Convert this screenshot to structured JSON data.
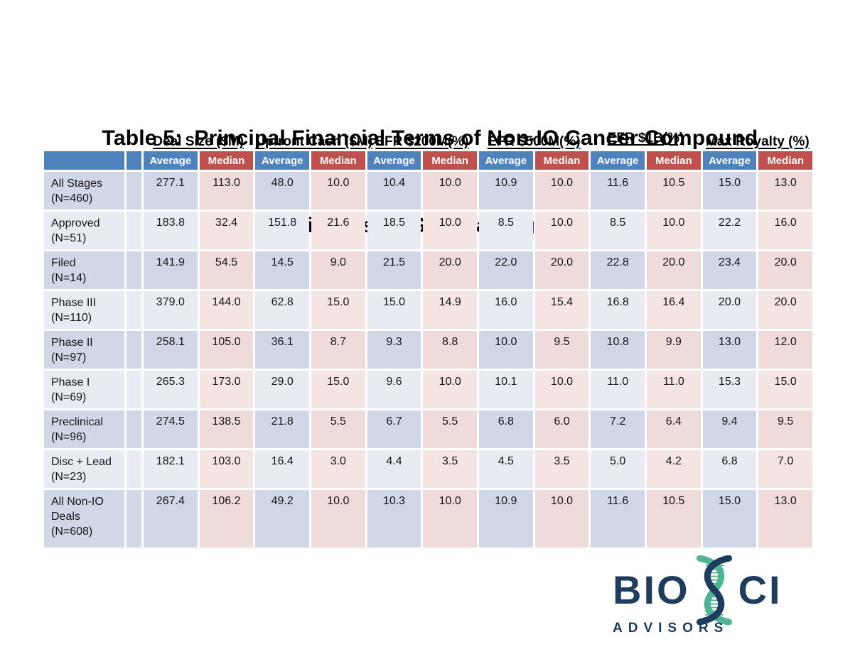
{
  "title": {
    "line1": "Table 5:  Principal Financial Terms of Non-IO Cancer Compound",
    "line2": "Alliances by Stage at Signing"
  },
  "table": {
    "column_groups": [
      "Deal Size ($M)",
      "Upfront Cash ($M)",
      "EFR $200M(%)",
      "EFR $500M(%)",
      "EFR $1B(%)",
      "Max Royalty (%)"
    ],
    "sub_headers": [
      "Average",
      "Median"
    ],
    "rows": [
      {
        "label": "All Stages\n(N=460)",
        "values": [
          "277.1",
          "113.0",
          "48.0",
          "10.0",
          "10.4",
          "10.0",
          "10.9",
          "10.0",
          "11.6",
          "10.5",
          "15.0",
          "13.0"
        ]
      },
      {
        "label": "Approved\n(N=51)",
        "values": [
          "183.8",
          "32.4",
          "151.8",
          "21.6",
          "18.5",
          "10.0",
          "8.5",
          "10.0",
          "8.5",
          "10.0",
          "22.2",
          "16.0"
        ]
      },
      {
        "label": "Filed\n(N=14)",
        "values": [
          "141.9",
          "54.5",
          "14.5",
          "9.0",
          "21.5",
          "20.0",
          "22.0",
          "20.0",
          "22.8",
          "20.0",
          "23.4",
          "20.0"
        ]
      },
      {
        "label": "Phase III\n(N=110)",
        "values": [
          "379.0",
          "144.0",
          "62.8",
          "15.0",
          "15.0",
          "14.9",
          "16.0",
          "15.4",
          "16.8",
          "16.4",
          "20.0",
          "20.0"
        ]
      },
      {
        "label": "Phase II\n(N=97)",
        "values": [
          "258.1",
          "105.0",
          "36.1",
          "8.7",
          "9.3",
          "8.8",
          "10.0",
          "9.5",
          "10.8",
          "9.9",
          "13.0",
          "12.0"
        ]
      },
      {
        "label": "Phase I\n(N=69)",
        "values": [
          "265.3",
          "173.0",
          "29.0",
          "15.0",
          "9.6",
          "10.0",
          "10.1",
          "10.0",
          "11.0",
          "11.0",
          "15.3",
          "15.0"
        ]
      },
      {
        "label": "Preclinical\n(N=96)",
        "values": [
          "274.5",
          "138.5",
          "21.8",
          "5.5",
          "6.7",
          "5.5",
          "6.8",
          "6.0",
          "7.2",
          "6.4",
          "9.4",
          "9.5"
        ]
      },
      {
        "label": "Disc + Lead\n(N=23)",
        "values": [
          "182.1",
          "103.0",
          "16.4",
          "3.0",
          "4.4",
          "3.5",
          "4.5",
          "3.5",
          "5.0",
          "4.2",
          "6.8",
          "7.0"
        ]
      },
      {
        "label": "All Non-IO\nDeals\n(N=608)",
        "values": [
          "267.4",
          "106.2",
          "49.2",
          "10.0",
          "10.3",
          "10.0",
          "10.9",
          "10.0",
          "11.6",
          "10.5",
          "15.0",
          "13.0"
        ]
      }
    ]
  },
  "colors": {
    "header_blue": "#4F81BD",
    "header_red": "#C0504D",
    "band_blue_dark": "#D0D7E6",
    "band_blue_light": "#E9EBF2",
    "band_pink_dark": "#EFDCDA",
    "band_pink_light": "#F4E5E3",
    "logo_navy": "#1E3C5E",
    "logo_teal": "#4FB493"
  },
  "logo": {
    "text_bio": "BIO",
    "text_ci": "CI",
    "subtitle": "ADVISORS",
    "icon": "dna-helix-icon"
  }
}
